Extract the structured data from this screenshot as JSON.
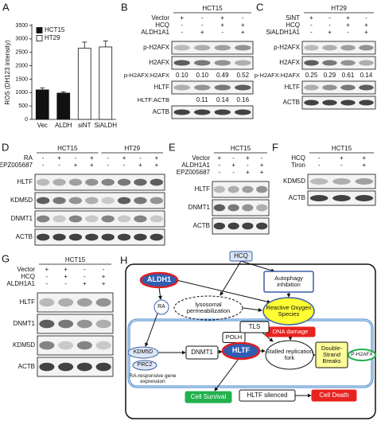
{
  "chart_data": {
    "type": "bar",
    "panel_label": "A",
    "ylabel": "ROS (DH123 intensity)",
    "categories": [
      "Vec",
      "ALDH",
      "siNT",
      "SiALDH"
    ],
    "series": [
      {
        "name": "HCT15",
        "color": "#111111",
        "values": [
          1100,
          980,
          null,
          null
        ],
        "errors": [
          70,
          50,
          null,
          null
        ]
      },
      {
        "name": "HT29",
        "color": "#ffffff",
        "values": [
          null,
          null,
          2650,
          2700
        ],
        "errors": [
          null,
          null,
          230,
          220
        ]
      }
    ],
    "ylim": [
      0,
      3500
    ],
    "yticks": [
      0,
      500,
      1000,
      1500,
      2000,
      2500,
      3000,
      3500
    ]
  },
  "panels": {
    "B": {
      "label": "B",
      "headers": [
        "HCT15"
      ],
      "conditions": [
        {
          "name": "Vector",
          "signs": [
            "+",
            "-",
            "+",
            "-"
          ]
        },
        {
          "name": "HCQ",
          "signs": [
            "-",
            "-",
            "+",
            "+"
          ]
        },
        {
          "name": "ALDH1A1",
          "signs": [
            "-",
            "+",
            "-",
            "+"
          ]
        }
      ],
      "rows": [
        {
          "name": "p-H2AFX"
        },
        {
          "name": "H2AFX"
        },
        {
          "name": "p-H2AFX:H2AFX",
          "values": [
            "0.10",
            "0.10",
            "0.49",
            "0.52"
          ]
        },
        {
          "name": "HLTF"
        },
        {
          "name": "HLTF:ACTB",
          "values": [
            null,
            "0.11",
            "0.14",
            "0.16"
          ]
        },
        {
          "name": "ACTB"
        }
      ]
    },
    "C": {
      "label": "C",
      "headers": [
        "HT29"
      ],
      "conditions": [
        {
          "name": "SiNT",
          "signs": [
            "+",
            "-",
            "+",
            "-"
          ]
        },
        {
          "name": "HCQ",
          "signs": [
            "-",
            "-",
            "+",
            "+"
          ]
        },
        {
          "name": "SiALDH1A1",
          "signs": [
            "-",
            "+",
            "-",
            "+"
          ]
        }
      ],
      "rows": [
        {
          "name": "p-H2AFX"
        },
        {
          "name": "H2AFX"
        },
        {
          "name": "p-H2AFX:H2AFX",
          "values": [
            "0.25",
            "0.29",
            "0.61",
            "0.14"
          ]
        },
        {
          "name": "HLTF"
        },
        {
          "name": "ACTB"
        }
      ]
    },
    "D": {
      "label": "D",
      "headers": [
        "HCT15",
        "HT29"
      ],
      "conditions": [
        {
          "name": "RA",
          "signs": [
            "-",
            "+",
            "-",
            "+",
            "-",
            "+",
            "-",
            "+"
          ]
        },
        {
          "name": "EPZ005687",
          "signs": [
            "-",
            "-",
            "+",
            "+",
            "-",
            "-",
            "+",
            "+"
          ]
        }
      ],
      "rows": [
        {
          "name": "HLTF"
        },
        {
          "name": "KDM5D"
        },
        {
          "name": "DNMT1"
        },
        {
          "name": "ACTB"
        }
      ]
    },
    "E": {
      "label": "E",
      "headers": [
        "HCT15"
      ],
      "conditions": [
        {
          "name": "Vector",
          "signs": [
            "+",
            "-",
            "+",
            "-"
          ]
        },
        {
          "name": "ALDH1A1",
          "signs": [
            "-",
            "+",
            "-",
            "+"
          ]
        },
        {
          "name": "EPZ005687",
          "signs": [
            "-",
            "-",
            "+",
            "+"
          ]
        }
      ],
      "rows": [
        {
          "name": "HLTF"
        },
        {
          "name": "DNMT1"
        },
        {
          "name": "ACTB"
        }
      ]
    },
    "F": {
      "label": "F",
      "headers": [
        "HCT15"
      ],
      "conditions": [
        {
          "name": "HCQ",
          "signs": [
            "-",
            "+",
            "+"
          ]
        },
        {
          "name": "Tiron",
          "signs": [
            "-",
            "-",
            "+"
          ]
        }
      ],
      "rows": [
        {
          "name": "KDM5D"
        },
        {
          "name": "ACTB"
        }
      ]
    },
    "G": {
      "label": "G",
      "headers": [
        "HCT15"
      ],
      "conditions": [
        {
          "name": "Vector",
          "signs": [
            "+",
            "+",
            "-",
            "-"
          ]
        },
        {
          "name": "HCQ",
          "signs": [
            "-",
            "+",
            "-",
            "+"
          ]
        },
        {
          "name": "ALDH1A1",
          "signs": [
            "-",
            "-",
            "+",
            "+"
          ]
        }
      ],
      "rows": [
        {
          "name": "HLTF"
        },
        {
          "name": "DNMT1"
        },
        {
          "name": "KDM5D"
        },
        {
          "name": "ACTB"
        }
      ]
    },
    "H": {
      "label": "H",
      "nodes": [
        "HCQ",
        "ALDH1",
        "RA",
        "lysosomal permeabilization",
        "Autophagy inhibition",
        "Reactive Oxygen Species",
        "DNA damage",
        "KDM5D",
        "PRC2",
        "RA-responsive gene expression",
        "DNMT1",
        "POLH",
        "TLS",
        "HLTF",
        "Stalled replication fork",
        "Double-Strand Breaks",
        "P-H2AFX",
        "Cell Survival",
        "HLTF silenced",
        "Cell Death"
      ]
    }
  }
}
